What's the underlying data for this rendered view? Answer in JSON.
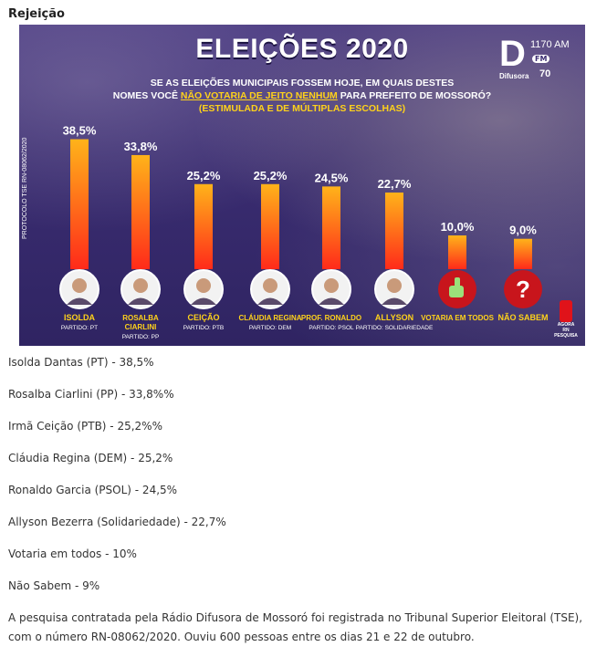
{
  "section_title": "Rejeição",
  "banner": {
    "headline": "ELEIÇÕES 2020",
    "question_line1": "SE AS ELEIÇÕES MUNICIPAIS FOSSEM HOJE, EM QUAIS DESTES",
    "question_line2_pre": "NOMES VOCÊ ",
    "question_line2_hl": "NÃO VOTARIA DE JEITO NENHUM",
    "question_line2_post": " PARA PREFEITO DE MOSSORÓ?",
    "question_line3": "(ESTIMULADA E DE MÚLTIPLAS ESCOLHAS)",
    "protocol": "PROTOCOLO TSE RN-08062/2020",
    "logo_letter": "D",
    "logo_brand": "Difusora",
    "logo_freq": "1170 AM",
    "logo_fm": "FM",
    "logo_anniv": "70",
    "agora_text": "AGORA RN PESQUISA"
  },
  "chart_data": {
    "type": "bar",
    "categories": [
      "ISOLDA",
      "ROSALBA CIARLINI",
      "CEIÇÃO",
      "CLÁUDIA REGINA",
      "PROF. RONALDO",
      "ALLYSON",
      "VOTARIA EM TODOS",
      "NÃO SABEM"
    ],
    "value_labels": [
      "38,5%",
      "33,8%",
      "25,2%",
      "25,2%",
      "24,5%",
      "22,7%",
      "10,0%",
      "9,0%"
    ],
    "values": [
      38.5,
      33.8,
      25.2,
      25.2,
      24.5,
      22.7,
      10.0,
      9.0
    ],
    "parties": [
      "PARTIDO: PT",
      "PARTIDO: PP",
      "PARTIDO: PTB",
      "PARTIDO: DEM",
      "PARTIDO: PSOL",
      "PARTIDO: SOLIDARIEDADE",
      "",
      ""
    ],
    "icons": [
      "avatar",
      "avatar",
      "avatar",
      "avatar",
      "avatar",
      "avatar",
      "thumbs-up-icon",
      "question-icon"
    ],
    "ylim": [
      0,
      40
    ],
    "bar_color_top": "#ffb31a",
    "bar_color_bottom": "#ff2a1a",
    "label_color": "#ffd21a",
    "value_color": "#ffffff"
  },
  "results": [
    "Isolda Dantas (PT) - 38,5%",
    "Rosalba Ciarlini (PP) - 33,8%%",
    "Irmã Ceição (PTB) - 25,2%%",
    "Cláudia Regina (DEM) - 25,2%",
    "Ronaldo Garcia (PSOL) - 24,5%",
    "Allyson Bezerra (Solidariedade) - 22,7%",
    "Votaria em todos - 10%",
    "Não Sabem - 9%"
  ],
  "note": "A pesquisa contratada pela Rádio Difusora de Mossoró foi registrada no Tribunal Superior Eleitoral (TSE), com o número  RN-08062/2020. Ouviu 600 pessoas entre os dias 21 e 22 de outubro."
}
